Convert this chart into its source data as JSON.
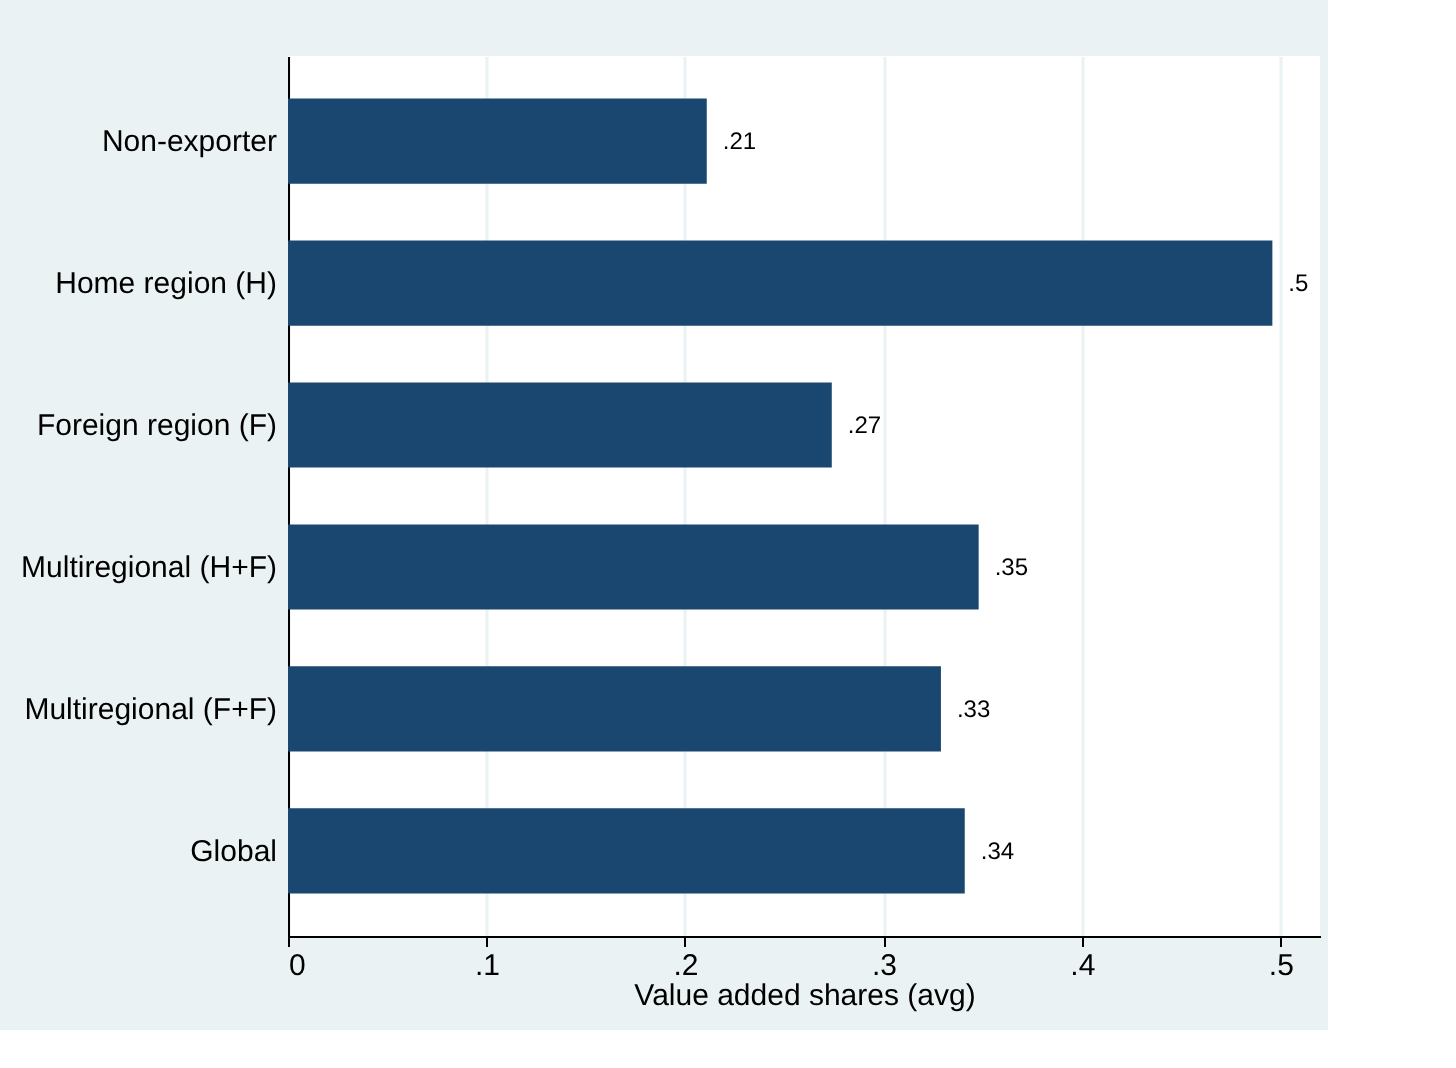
{
  "chart_data": {
    "type": "bar",
    "orientation": "horizontal",
    "xlabel": "Value added shares (avg)",
    "categories": [
      "Non-exporter",
      "Home region (H)",
      "Foreign region (F)",
      "Multiregional (H+F)",
      "Multiregional (F+F)",
      "Global"
    ],
    "values": [
      0.211,
      0.496,
      0.274,
      0.348,
      0.329,
      0.341
    ],
    "value_labels": [
      ".21",
      ".5",
      ".27",
      ".35",
      ".33",
      ".34"
    ],
    "color": "#1a476f",
    "xlim": [
      0,
      0.52
    ],
    "xticks": [
      0,
      {
        "value": 0.1,
        "label": ".1"
      },
      {
        "value": 0.2,
        "label": ".2"
      },
      {
        "value": 0.3,
        "label": ".3"
      },
      {
        "value": 0.4,
        "label": ".4"
      },
      {
        "value": 0.5,
        "label": ".5"
      }
    ],
    "grid": "x"
  }
}
